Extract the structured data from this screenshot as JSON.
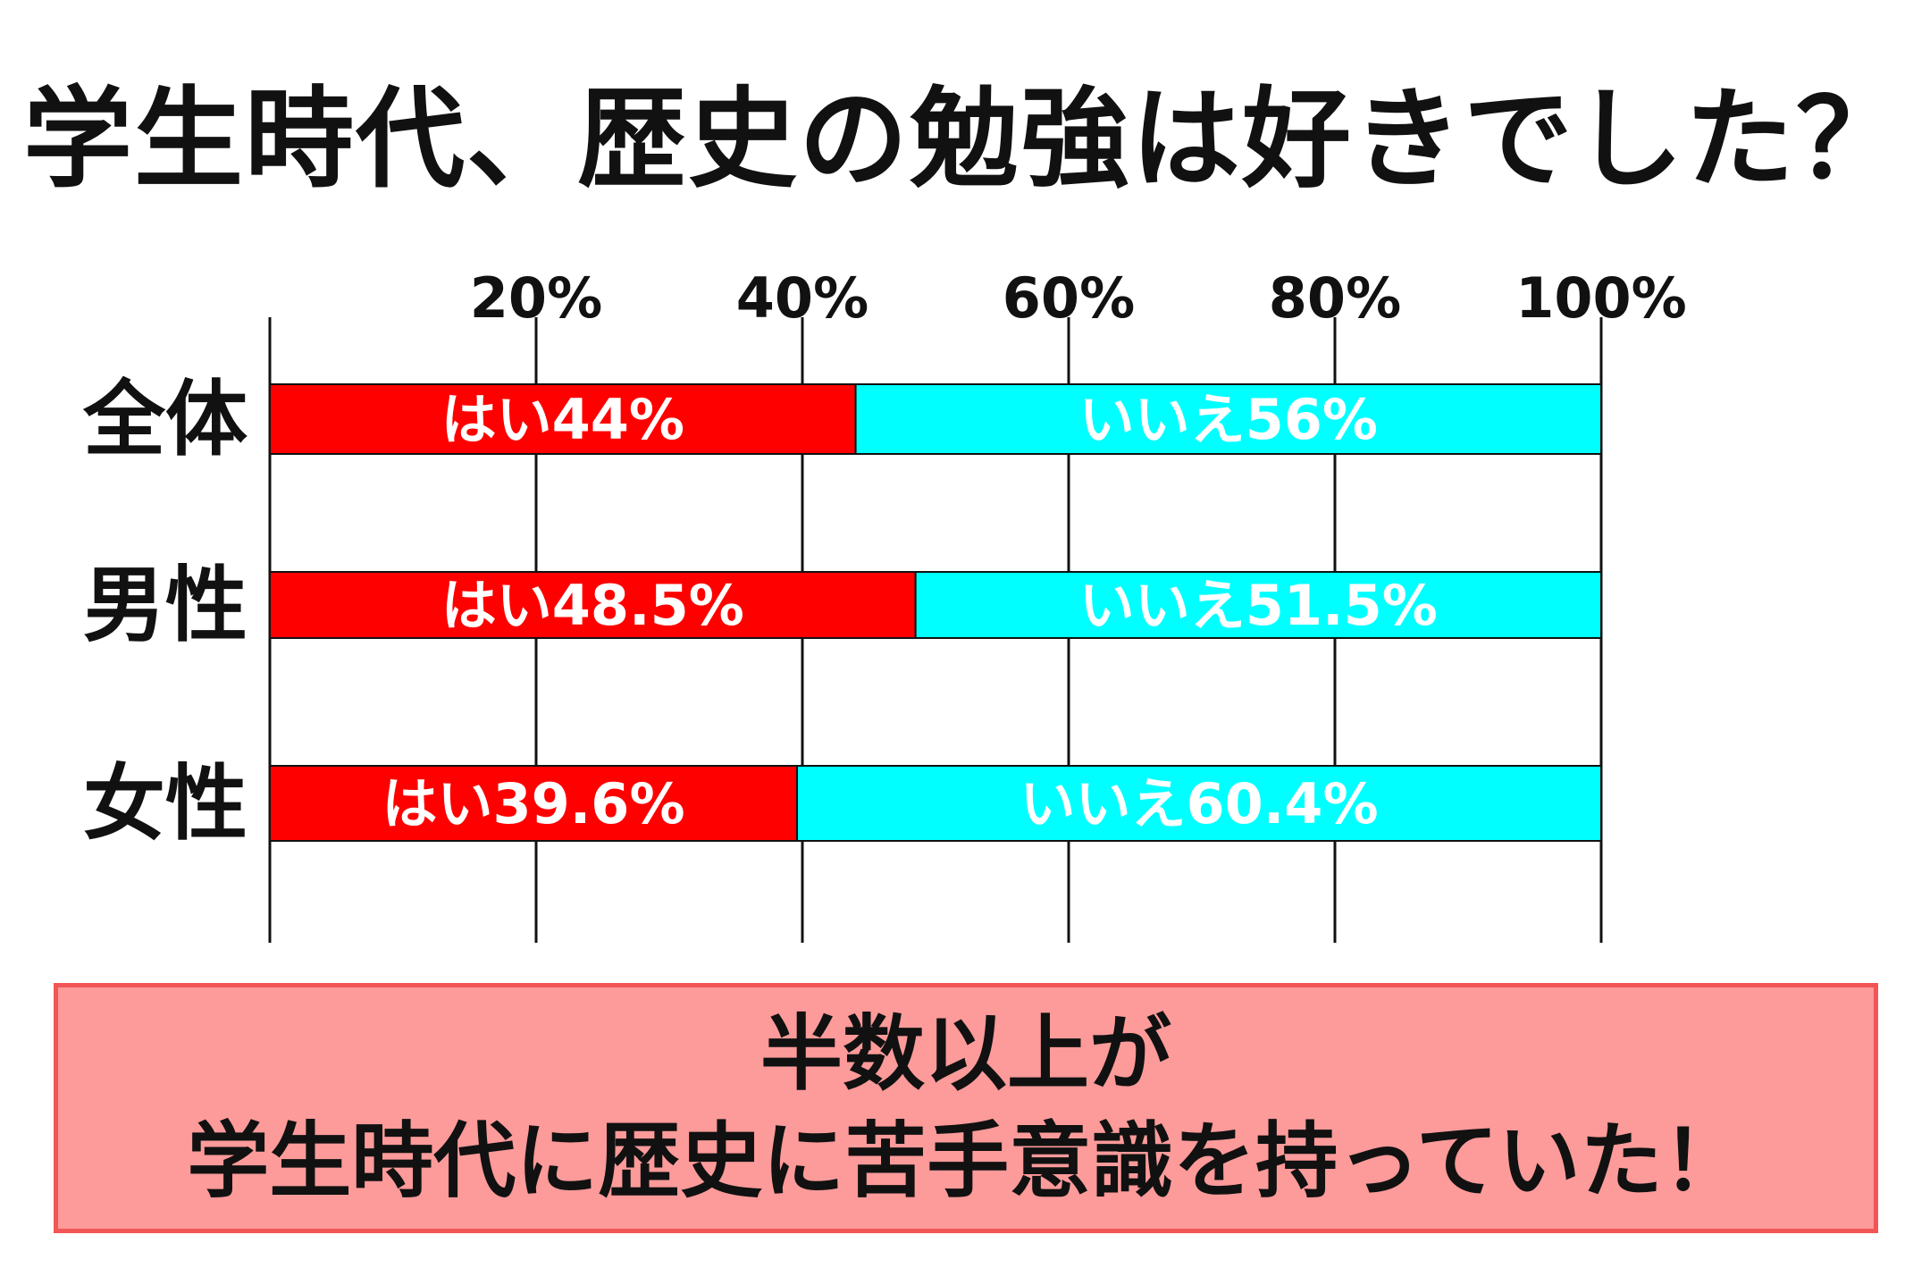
{
  "chart_data": {
    "type": "bar",
    "stacked": true,
    "orientation": "horizontal",
    "title": "学生時代、歴史の勉強は好きでした？",
    "categories": [
      "全体",
      "男性",
      "女性"
    ],
    "series": [
      {
        "name": "はい",
        "values": [
          44,
          48.5,
          39.6
        ],
        "labels": [
          "はい44%",
          "はい48.5%",
          "はい39.6%"
        ],
        "color": "#ff0000"
      },
      {
        "name": "いいえ",
        "values": [
          56,
          51.5,
          60.4
        ],
        "labels": [
          "いいえ56%",
          "いいえ51.5%",
          "いいえ60.4%"
        ],
        "color": "#00ffff"
      }
    ],
    "xticks": [
      "20%",
      "40%",
      "60%",
      "80%",
      "100%"
    ],
    "xtick_values": [
      20,
      40,
      60,
      80,
      100
    ],
    "xlim": [
      0,
      100
    ],
    "grid": true
  },
  "conclusion": {
    "line1": "半数以上が",
    "line2": "学生時代に歴史に苦手意識を持っていた！"
  },
  "colors": {
    "yes": "#ff0000",
    "no": "#00ffff",
    "box_fill": "#fd9a9a",
    "box_border": "#f25555"
  }
}
